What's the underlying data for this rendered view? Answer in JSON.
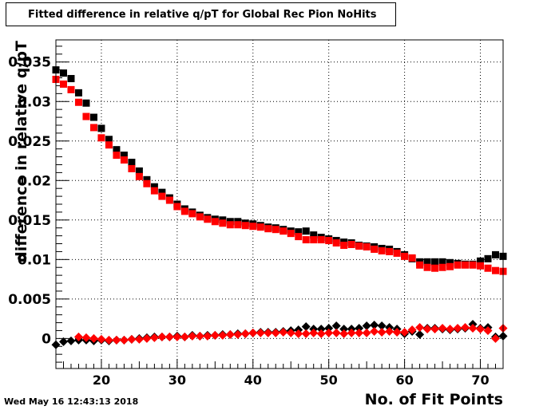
{
  "chart_data": {
    "type": "scatter",
    "title": "Fitted difference in relative q/pT for Global Rec Pion NoHits",
    "xlabel": "No. of Fit Points",
    "ylabel": "difference in relative q/pT",
    "xlim": [
      14,
      73
    ],
    "ylim": [
      -0.0038,
      0.0378
    ],
    "grid": true,
    "x_ticks": [
      20,
      30,
      40,
      50,
      60,
      70
    ],
    "y_ticks": [
      "0",
      "0.005",
      "0.01",
      "0.015",
      "0.02",
      "0.025",
      "0.03",
      "0.035"
    ],
    "series": [
      {
        "marker": "square",
        "color": "#000000",
        "x": [
          14,
          15,
          16,
          17,
          18,
          19,
          20,
          21,
          22,
          23,
          24,
          25,
          26,
          27,
          28,
          29,
          30,
          31,
          32,
          33,
          34,
          35,
          36,
          37,
          38,
          39,
          40,
          41,
          42,
          43,
          44,
          45,
          46,
          47,
          48,
          49,
          50,
          51,
          52,
          53,
          54,
          55,
          56,
          57,
          58,
          59,
          60,
          61,
          62,
          63,
          64,
          65,
          66,
          67,
          68,
          69,
          70,
          71,
          72,
          73
        ],
        "values": [
          0.034,
          0.0336,
          0.0329,
          0.0311,
          0.0298,
          0.028,
          0.0266,
          0.0252,
          0.0239,
          0.0232,
          0.0223,
          0.0212,
          0.0201,
          0.0192,
          0.0185,
          0.0178,
          0.017,
          0.0164,
          0.016,
          0.0156,
          0.0153,
          0.0151,
          0.015,
          0.0148,
          0.0148,
          0.0146,
          0.0145,
          0.0143,
          0.0141,
          0.014,
          0.0138,
          0.0136,
          0.0135,
          0.0136,
          0.0131,
          0.0128,
          0.0126,
          0.0124,
          0.0122,
          0.0121,
          0.0118,
          0.0117,
          0.0116,
          0.0114,
          0.0113,
          0.011,
          0.0106,
          0.0101,
          0.0097,
          0.0097,
          0.0097,
          0.0097,
          0.0096,
          0.0095,
          0.0094,
          0.0094,
          0.0098,
          0.0101,
          0.0106,
          0.0104
        ]
      },
      {
        "marker": "square",
        "color": "#ff0000",
        "x": [
          14,
          15,
          16,
          17,
          18,
          19,
          20,
          21,
          22,
          23,
          24,
          25,
          26,
          27,
          28,
          29,
          30,
          31,
          32,
          33,
          34,
          35,
          36,
          37,
          38,
          39,
          40,
          41,
          42,
          43,
          44,
          45,
          46,
          47,
          48,
          49,
          50,
          51,
          52,
          53,
          54,
          55,
          56,
          57,
          58,
          59,
          60,
          61,
          62,
          63,
          64,
          65,
          66,
          67,
          68,
          69,
          70,
          71,
          72,
          73
        ],
        "values": [
          0.0328,
          0.0322,
          0.0315,
          0.0299,
          0.0281,
          0.0267,
          0.0254,
          0.0245,
          0.0232,
          0.0226,
          0.0215,
          0.0205,
          0.0196,
          0.0187,
          0.018,
          0.0175,
          0.0167,
          0.0161,
          0.0158,
          0.0154,
          0.0151,
          0.0148,
          0.0146,
          0.0144,
          0.0144,
          0.0143,
          0.0142,
          0.0141,
          0.0139,
          0.0138,
          0.0136,
          0.0133,
          0.0129,
          0.0125,
          0.0125,
          0.0125,
          0.0124,
          0.0121,
          0.0118,
          0.0119,
          0.0117,
          0.0116,
          0.0113,
          0.0111,
          0.011,
          0.0108,
          0.0104,
          0.0102,
          0.0093,
          0.009,
          0.0089,
          0.009,
          0.0091,
          0.0093,
          0.0093,
          0.0093,
          0.0092,
          0.0089,
          0.0086,
          0.0085
        ]
      },
      {
        "marker": "diamond",
        "color": "#000000",
        "x": [
          14,
          15,
          16,
          17,
          18,
          19,
          20,
          21,
          22,
          23,
          24,
          25,
          26,
          27,
          28,
          29,
          30,
          31,
          32,
          33,
          34,
          35,
          36,
          37,
          38,
          39,
          40,
          41,
          42,
          43,
          44,
          45,
          46,
          47,
          48,
          49,
          50,
          51,
          52,
          53,
          54,
          55,
          56,
          57,
          58,
          59,
          60,
          61,
          62,
          63,
          64,
          65,
          66,
          67,
          68,
          69,
          70,
          71,
          72,
          73
        ],
        "values": [
          -0.0008,
          -0.0004,
          -0.0003,
          -0.0002,
          -0.0002,
          -0.0003,
          -0.0002,
          -0.0003,
          -0.0002,
          -0.0002,
          -0.0001,
          0.0,
          0.0001,
          0.0002,
          0.0002,
          0.0002,
          0.0003,
          0.0002,
          0.0004,
          0.0003,
          0.0004,
          0.0004,
          0.0005,
          0.0005,
          0.0006,
          0.0006,
          0.0007,
          0.0008,
          0.0008,
          0.0008,
          0.0009,
          0.001,
          0.0011,
          0.0015,
          0.0012,
          0.0012,
          0.0013,
          0.0016,
          0.0012,
          0.0012,
          0.0013,
          0.0016,
          0.0017,
          0.0016,
          0.0014,
          0.0012,
          0.0006,
          0.0009,
          0.0005,
          0.0013,
          0.0013,
          0.0012,
          0.0011,
          0.0012,
          0.0013,
          0.0018,
          0.0013,
          0.0014,
          0.0002,
          0.0003
        ]
      },
      {
        "marker": "diamond",
        "color": "#ff0000",
        "x": [
          17,
          18,
          19,
          20,
          21,
          22,
          23,
          24,
          25,
          26,
          27,
          28,
          29,
          30,
          31,
          32,
          33,
          34,
          35,
          36,
          37,
          38,
          39,
          40,
          41,
          42,
          43,
          44,
          45,
          46,
          47,
          48,
          49,
          50,
          51,
          52,
          53,
          54,
          55,
          56,
          57,
          58,
          59,
          60,
          61,
          62,
          63,
          64,
          65,
          66,
          67,
          68,
          69,
          70,
          71,
          72,
          73
        ],
        "values": [
          0.0002,
          0.0001,
          0.0,
          -0.0001,
          -0.0002,
          -0.0002,
          -0.0002,
          -0.0001,
          -0.0001,
          0.0,
          0.0001,
          0.0002,
          0.0002,
          0.0002,
          0.0002,
          0.0003,
          0.0003,
          0.0003,
          0.0004,
          0.0004,
          0.0005,
          0.0005,
          0.0006,
          0.0007,
          0.0007,
          0.0007,
          0.0007,
          0.0008,
          0.0007,
          0.0006,
          0.0006,
          0.0007,
          0.0006,
          0.0007,
          0.0007,
          0.0006,
          0.0007,
          0.0007,
          0.0007,
          0.0009,
          0.0008,
          0.0009,
          0.0008,
          0.0008,
          0.0011,
          0.0014,
          0.0012,
          0.0012,
          0.0013,
          0.0012,
          0.0013,
          0.0014,
          0.0013,
          0.0012,
          0.001,
          0.0,
          0.0013
        ]
      }
    ]
  },
  "timestamp": "Wed May 16 12:43:13 2018"
}
